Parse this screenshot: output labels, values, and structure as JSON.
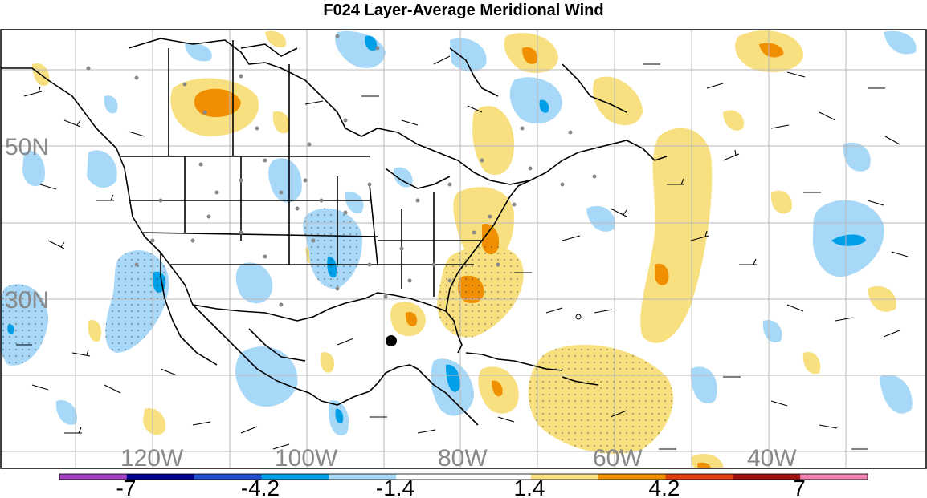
{
  "title": "F024 Layer-Average Meridional Wind",
  "map": {
    "lat_labels": [
      "50N",
      "30N"
    ],
    "lon_labels": [
      "120W",
      "100W",
      "80W",
      "60W",
      "40W"
    ]
  },
  "colorbar": {
    "colors": [
      "#a040c0",
      "#000090",
      "#2050d0",
      "#00a0e8",
      "#a8d8f8",
      "#ffffff",
      "#ffffff",
      "#f8e080",
      "#f09000",
      "#e04010",
      "#a01010",
      "#f080b0"
    ],
    "tick_labels": [
      "-7",
      "-4.2",
      "-1.4",
      "1.4",
      "4.2",
      "7"
    ]
  }
}
